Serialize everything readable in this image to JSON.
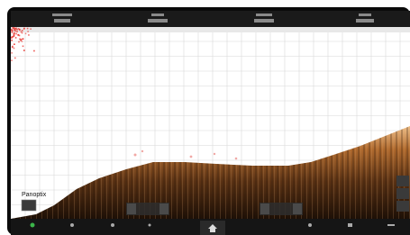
{
  "mode_label": "Panoptix"
}
